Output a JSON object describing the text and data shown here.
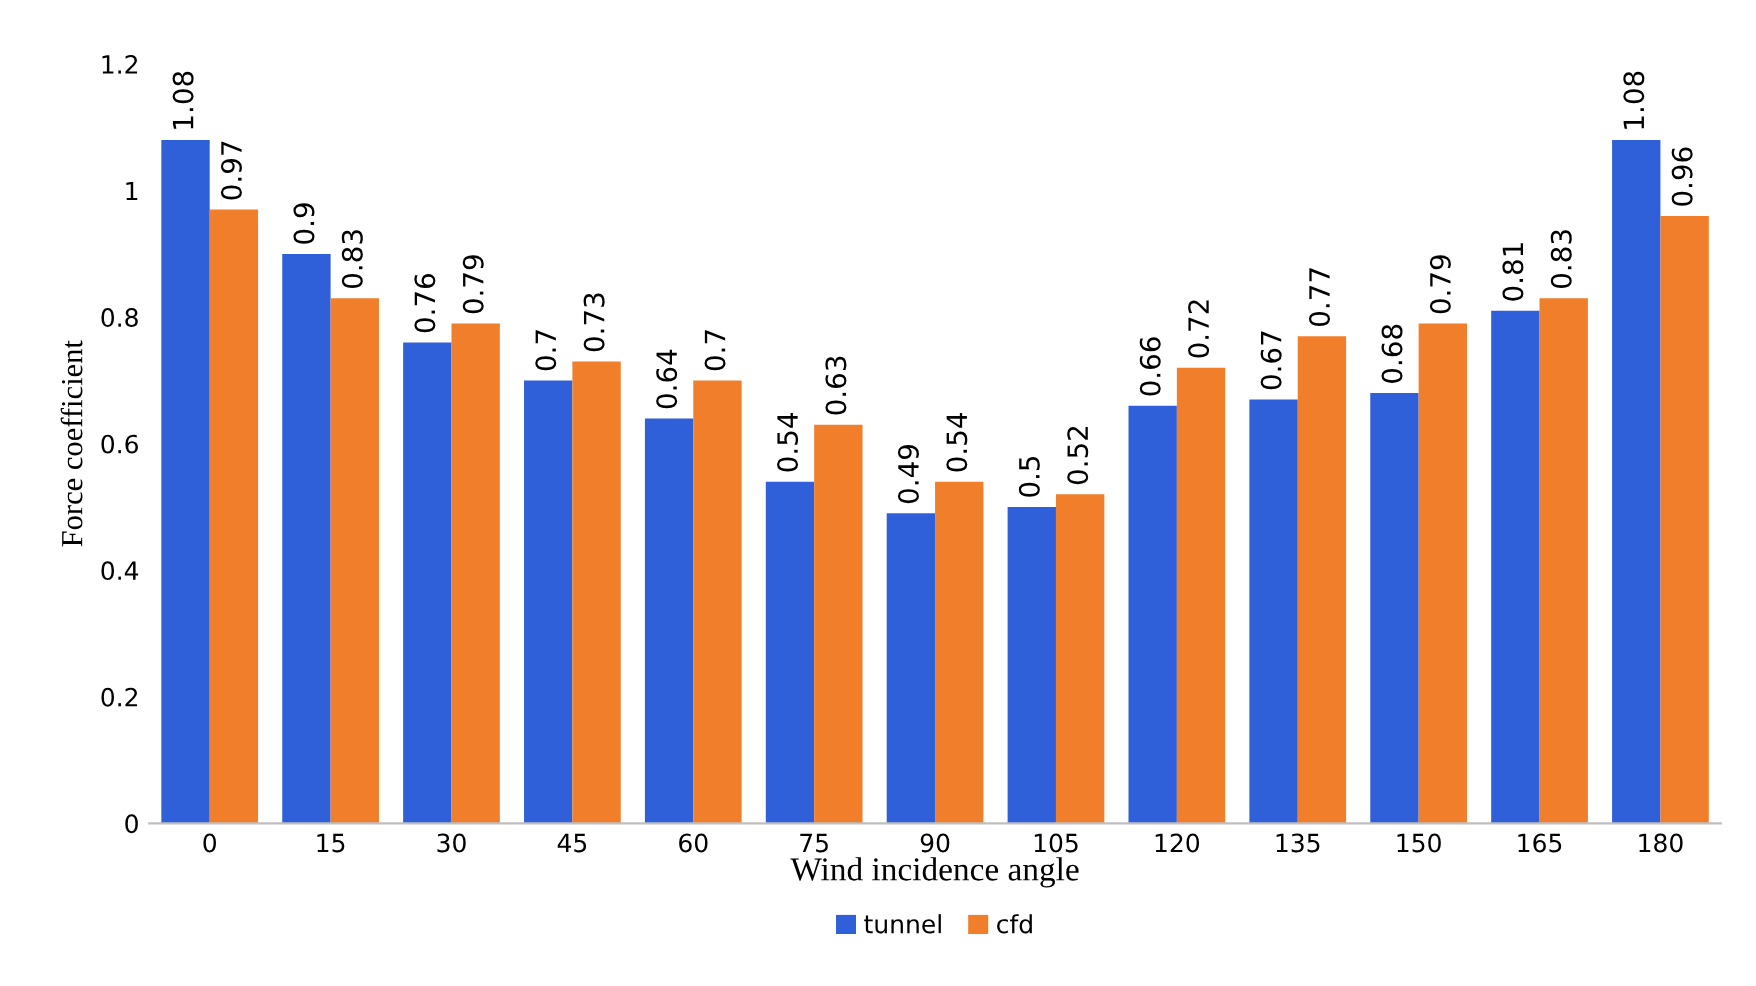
{
  "chart_data": {
    "type": "bar",
    "xlabel": "Wind incidence angle",
    "ylabel": "Force coefficient",
    "categories": [
      "0",
      "15",
      "30",
      "45",
      "60",
      "75",
      "90",
      "105",
      "120",
      "135",
      "150",
      "165",
      "180"
    ],
    "series": [
      {
        "name": "tunnel",
        "color": "#2f5fd9",
        "values": [
          1.08,
          0.9,
          0.76,
          0.7,
          0.64,
          0.54,
          0.49,
          0.5,
          0.66,
          0.67,
          0.68,
          0.81,
          1.08
        ]
      },
      {
        "name": "cfd",
        "color": "#f07e2b",
        "values": [
          0.97,
          0.83,
          0.79,
          0.73,
          0.7,
          0.63,
          0.54,
          0.52,
          0.72,
          0.77,
          0.79,
          0.83,
          0.96
        ]
      }
    ],
    "ylim": [
      0,
      1.2
    ],
    "yticks": [
      0,
      0.2,
      0.4,
      0.6,
      0.8,
      1,
      1.2
    ],
    "grid": false,
    "legend": "bottom",
    "data_labels": true
  }
}
